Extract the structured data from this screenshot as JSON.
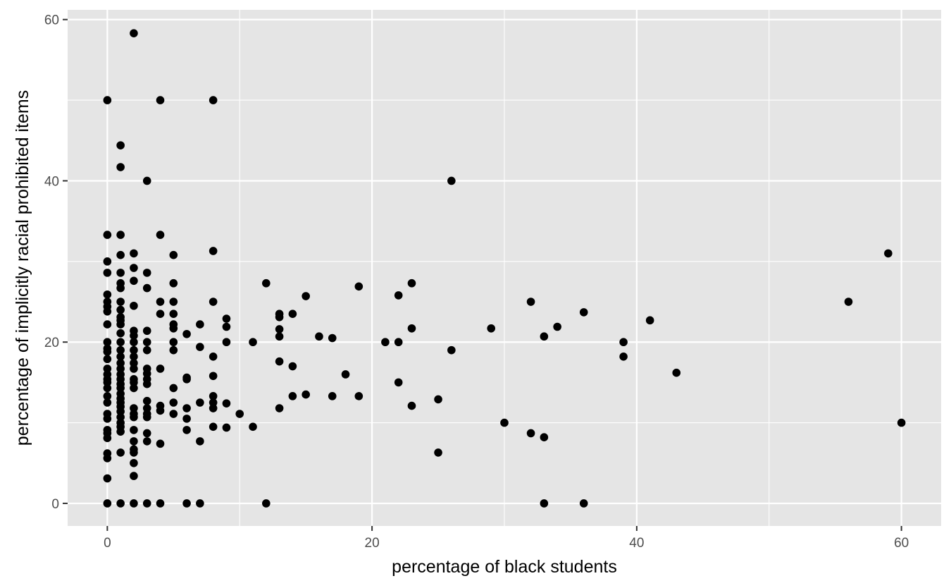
{
  "chart_data": {
    "type": "scatter",
    "title": "",
    "xlabel": "percentage of black students",
    "ylabel": "percentage of implicitly racial prohibited items",
    "xlim": [
      -3,
      63
    ],
    "ylim": [
      -2.8,
      61.2
    ],
    "x_ticks": [
      0,
      20,
      40,
      60
    ],
    "x_tick_labels": [
      "0",
      "20",
      "40",
      "60"
    ],
    "y_ticks": [
      0,
      20,
      40,
      60
    ],
    "y_tick_labels": [
      "0",
      "20",
      "40",
      "60"
    ],
    "x_minor_ticks": [
      10,
      30,
      50
    ],
    "y_minor_ticks": [
      10,
      30,
      50
    ],
    "grid": true,
    "legend": "none",
    "colors": {
      "panel": "#e5e5e5",
      "grid": "#ffffff",
      "point": "#000000",
      "tick_text": "#4d4d4d",
      "tick_mark": "#333333"
    },
    "points": [
      [
        0,
        0
      ],
      [
        0,
        3.1
      ],
      [
        0,
        5.6
      ],
      [
        0,
        6.2
      ],
      [
        0,
        8.1
      ],
      [
        0,
        8.7
      ],
      [
        0,
        9.1
      ],
      [
        0,
        10.5
      ],
      [
        0,
        11.1
      ],
      [
        0,
        12.5
      ],
      [
        0,
        13.3
      ],
      [
        0,
        14.3
      ],
      [
        0,
        15.0
      ],
      [
        0,
        15.4
      ],
      [
        0,
        16.0
      ],
      [
        0,
        16.7
      ],
      [
        0,
        17.9
      ],
      [
        0,
        18.8
      ],
      [
        0,
        19.2
      ],
      [
        0,
        20.0
      ],
      [
        0,
        22.2
      ],
      [
        0,
        23.8
      ],
      [
        0,
        24.4
      ],
      [
        0,
        25.0
      ],
      [
        0,
        25.9
      ],
      [
        0,
        28.6
      ],
      [
        0,
        30.0
      ],
      [
        0,
        33.3
      ],
      [
        0,
        50.0
      ],
      [
        1,
        0
      ],
      [
        1,
        6.3
      ],
      [
        1,
        8.9
      ],
      [
        1,
        9.5
      ],
      [
        1,
        10.0
      ],
      [
        1,
        10.7
      ],
      [
        1,
        11.4
      ],
      [
        1,
        12.0
      ],
      [
        1,
        12.5
      ],
      [
        1,
        13.0
      ],
      [
        1,
        13.6
      ],
      [
        1,
        14.3
      ],
      [
        1,
        14.8
      ],
      [
        1,
        15.4
      ],
      [
        1,
        16.0
      ],
      [
        1,
        16.7
      ],
      [
        1,
        17.4
      ],
      [
        1,
        18.2
      ],
      [
        1,
        19.0
      ],
      [
        1,
        20.0
      ],
      [
        1,
        21.1
      ],
      [
        1,
        22.2
      ],
      [
        1,
        22.7
      ],
      [
        1,
        23.1
      ],
      [
        1,
        24.0
      ],
      [
        1,
        25.0
      ],
      [
        1,
        26.7
      ],
      [
        1,
        27.3
      ],
      [
        1,
        28.6
      ],
      [
        1,
        30.8
      ],
      [
        1,
        33.3
      ],
      [
        1,
        41.7
      ],
      [
        1,
        44.4
      ],
      [
        2,
        0
      ],
      [
        2,
        3.4
      ],
      [
        2,
        5.0
      ],
      [
        2,
        6.3
      ],
      [
        2,
        6.7
      ],
      [
        2,
        7.7
      ],
      [
        2,
        9.1
      ],
      [
        2,
        10.7
      ],
      [
        2,
        11.1
      ],
      [
        2,
        11.8
      ],
      [
        2,
        14.3
      ],
      [
        2,
        15.0
      ],
      [
        2,
        15.4
      ],
      [
        2,
        16.7
      ],
      [
        2,
        17.4
      ],
      [
        2,
        18.2
      ],
      [
        2,
        19.0
      ],
      [
        2,
        20.0
      ],
      [
        2,
        20.8
      ],
      [
        2,
        21.4
      ],
      [
        2,
        24.5
      ],
      [
        2,
        27.6
      ],
      [
        2,
        29.2
      ],
      [
        2,
        31.0
      ],
      [
        2,
        58.3
      ],
      [
        3,
        0
      ],
      [
        3,
        7.7
      ],
      [
        3,
        8.7
      ],
      [
        3,
        10.7
      ],
      [
        3,
        11.1
      ],
      [
        3,
        11.8
      ],
      [
        3,
        12.7
      ],
      [
        3,
        14.8
      ],
      [
        3,
        15.4
      ],
      [
        3,
        16.1
      ],
      [
        3,
        16.7
      ],
      [
        3,
        19.0
      ],
      [
        3,
        20.0
      ],
      [
        3,
        21.4
      ],
      [
        3,
        26.7
      ],
      [
        3,
        28.6
      ],
      [
        3,
        40.0
      ],
      [
        4,
        0
      ],
      [
        4,
        7.4
      ],
      [
        4,
        11.5
      ],
      [
        4,
        12.1
      ],
      [
        4,
        16.7
      ],
      [
        4,
        23.5
      ],
      [
        4,
        25.0
      ],
      [
        4,
        33.3
      ],
      [
        4,
        50.0
      ],
      [
        5,
        11.1
      ],
      [
        5,
        12.5
      ],
      [
        5,
        14.3
      ],
      [
        5,
        19.0
      ],
      [
        5,
        20.0
      ],
      [
        5,
        21.7
      ],
      [
        5,
        22.2
      ],
      [
        5,
        23.5
      ],
      [
        5,
        25.0
      ],
      [
        5,
        27.3
      ],
      [
        5,
        30.8
      ],
      [
        6,
        0
      ],
      [
        6,
        9.1
      ],
      [
        6,
        10.5
      ],
      [
        6,
        11.8
      ],
      [
        6,
        15.4
      ],
      [
        6,
        15.6
      ],
      [
        6,
        21.0
      ],
      [
        7,
        0
      ],
      [
        7,
        7.7
      ],
      [
        7,
        12.5
      ],
      [
        7,
        19.4
      ],
      [
        7,
        22.2
      ],
      [
        8,
        9.5
      ],
      [
        8,
        11.8
      ],
      [
        8,
        12.5
      ],
      [
        8,
        13.3
      ],
      [
        8,
        15.8
      ],
      [
        8,
        18.2
      ],
      [
        8,
        25.0
      ],
      [
        8,
        31.3
      ],
      [
        8,
        50.0
      ],
      [
        9,
        9.4
      ],
      [
        9,
        12.4
      ],
      [
        9,
        20.0
      ],
      [
        9,
        21.9
      ],
      [
        9,
        22.9
      ],
      [
        10,
        11.1
      ],
      [
        11,
        9.5
      ],
      [
        11,
        20.0
      ],
      [
        12,
        0
      ],
      [
        12,
        27.3
      ],
      [
        13,
        11.8
      ],
      [
        13,
        17.6
      ],
      [
        13,
        20.7
      ],
      [
        13,
        21.6
      ],
      [
        13,
        23.1
      ],
      [
        13,
        23.5
      ],
      [
        14,
        13.3
      ],
      [
        14,
        17.0
      ],
      [
        14,
        23.5
      ],
      [
        15,
        13.5
      ],
      [
        15,
        25.7
      ],
      [
        16,
        20.7
      ],
      [
        17,
        13.3
      ],
      [
        17,
        20.5
      ],
      [
        18,
        16.0
      ],
      [
        19,
        13.3
      ],
      [
        19,
        26.9
      ],
      [
        21,
        20.0
      ],
      [
        22,
        15.0
      ],
      [
        22,
        20.0
      ],
      [
        22,
        25.8
      ],
      [
        23,
        12.1
      ],
      [
        23,
        21.7
      ],
      [
        23,
        27.3
      ],
      [
        25,
        6.3
      ],
      [
        25,
        12.9
      ],
      [
        26,
        19.0
      ],
      [
        26,
        40.0
      ],
      [
        29,
        21.7
      ],
      [
        30,
        10.0
      ],
      [
        32,
        8.7
      ],
      [
        32,
        25.0
      ],
      [
        33,
        0
      ],
      [
        33,
        8.2
      ],
      [
        33,
        20.7
      ],
      [
        34,
        21.9
      ],
      [
        36,
        0
      ],
      [
        36,
        23.7
      ],
      [
        39,
        18.2
      ],
      [
        39,
        20.0
      ],
      [
        41,
        22.7
      ],
      [
        43,
        16.2
      ],
      [
        56,
        25.0
      ],
      [
        59,
        31.0
      ],
      [
        60,
        10.0
      ]
    ]
  }
}
